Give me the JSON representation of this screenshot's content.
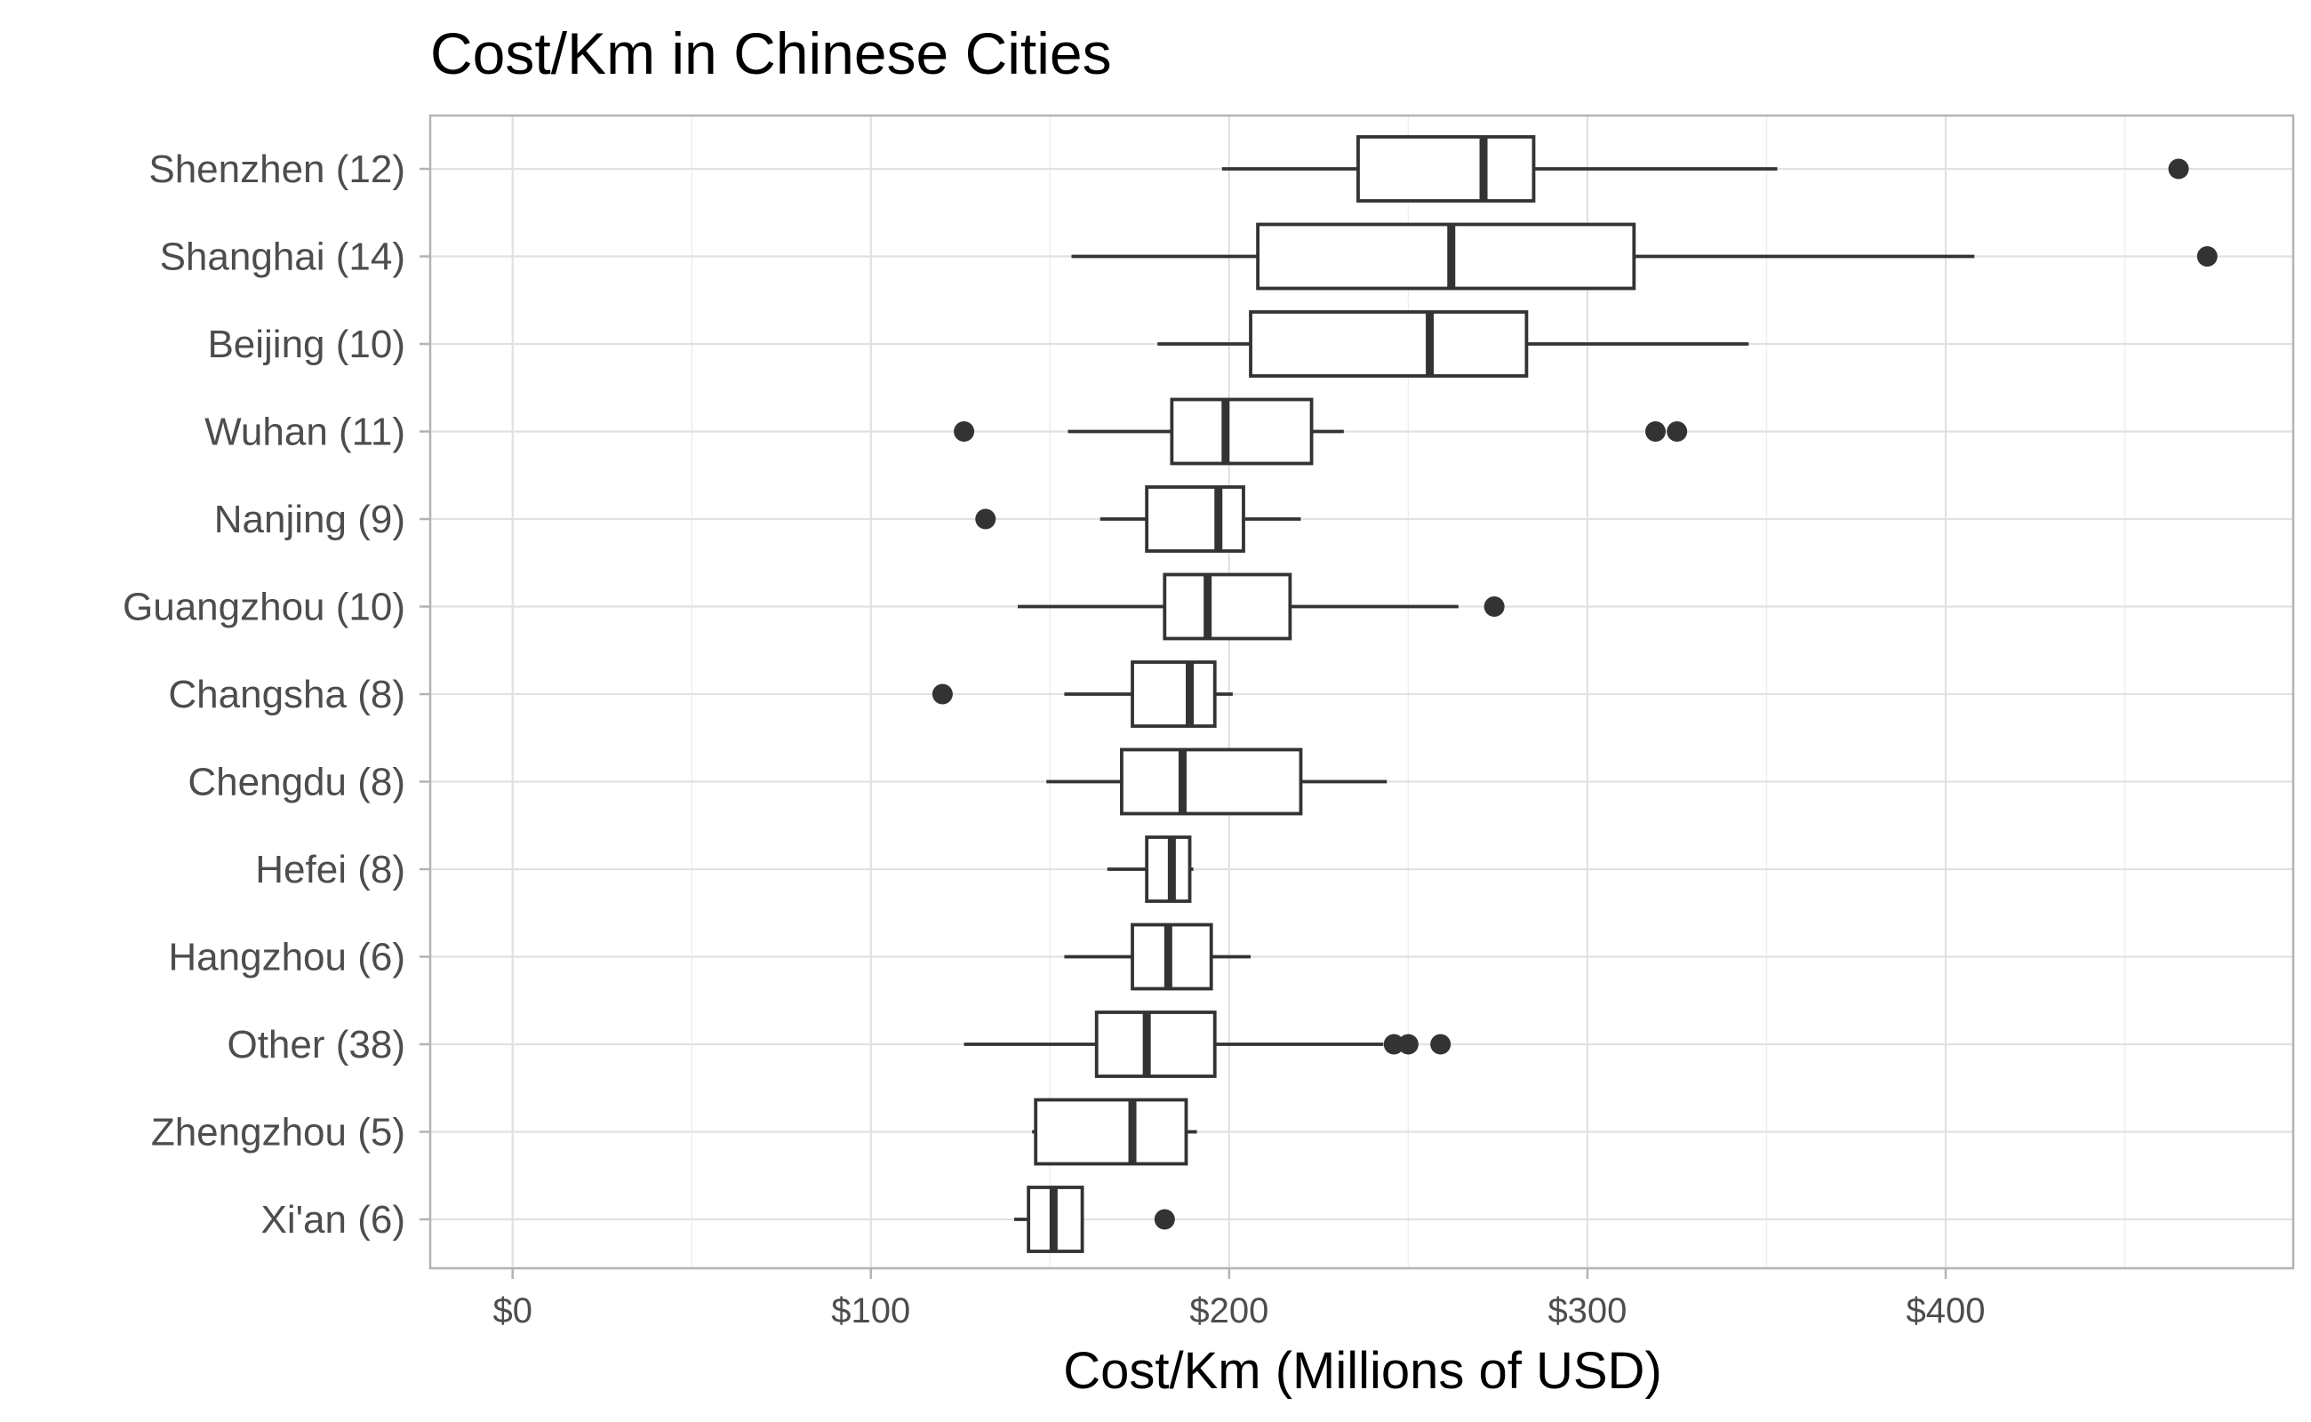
{
  "chart_data": {
    "type": "boxplot",
    "orientation": "horizontal",
    "title": "Cost/Km in Chinese Cities",
    "xlabel": "Cost/Km (Millions of USD)",
    "ylabel": "",
    "xlim": [
      -23,
      497
    ],
    "x_ticks": [
      0,
      100,
      200,
      300,
      400
    ],
    "x_tick_labels": [
      "$0",
      "$100",
      "$200",
      "$300",
      "$400"
    ],
    "grid": true,
    "colors": {
      "box_line": "#333333",
      "box_fill": "#ffffff",
      "grid": "#e1e1e1",
      "panel_border": "#b3b3b3"
    },
    "categories": [
      "Shenzhen (12)",
      "Shanghai (14)",
      "Beijing (10)",
      "Wuhan (11)",
      "Nanjing (9)",
      "Guangzhou (10)",
      "Changsha (8)",
      "Chengdu (8)",
      "Hefei (8)",
      "Hangzhou (6)",
      "Other (38)",
      "Zhengzhou (5)",
      "Xi'an (6)"
    ],
    "boxes": [
      {
        "label": "Shenzhen (12)",
        "whisker_low": 198,
        "q1": 236,
        "median": 271,
        "q3": 285,
        "whisker_high": 353,
        "outliers": [
          465
        ]
      },
      {
        "label": "Shanghai (14)",
        "whisker_low": 156,
        "q1": 208,
        "median": 262,
        "q3": 313,
        "whisker_high": 408,
        "outliers": [
          473
        ]
      },
      {
        "label": "Beijing (10)",
        "whisker_low": 180,
        "q1": 206,
        "median": 256,
        "q3": 283,
        "whisker_high": 345,
        "outliers": []
      },
      {
        "label": "Wuhan (11)",
        "whisker_low": 155,
        "q1": 184,
        "median": 199,
        "q3": 223,
        "whisker_high": 232,
        "outliers": [
          126,
          319,
          325
        ]
      },
      {
        "label": "Nanjing (9)",
        "whisker_low": 164,
        "q1": 177,
        "median": 197,
        "q3": 204,
        "whisker_high": 220,
        "outliers": [
          132
        ]
      },
      {
        "label": "Guangzhou (10)",
        "whisker_low": 141,
        "q1": 182,
        "median": 194,
        "q3": 217,
        "whisker_high": 264,
        "outliers": [
          274
        ]
      },
      {
        "label": "Changsha (8)",
        "whisker_low": 154,
        "q1": 173,
        "median": 189,
        "q3": 196,
        "whisker_high": 201,
        "outliers": [
          120
        ]
      },
      {
        "label": "Chengdu (8)",
        "whisker_low": 149,
        "q1": 170,
        "median": 187,
        "q3": 220,
        "whisker_high": 244,
        "outliers": []
      },
      {
        "label": "Hefei (8)",
        "whisker_low": 166,
        "q1": 177,
        "median": 184,
        "q3": 189,
        "whisker_high": 190,
        "outliers": []
      },
      {
        "label": "Hangzhou (6)",
        "whisker_low": 154,
        "q1": 173,
        "median": 183,
        "q3": 195,
        "whisker_high": 206,
        "outliers": []
      },
      {
        "label": "Other (38)",
        "whisker_low": 126,
        "q1": 163,
        "median": 177,
        "q3": 196,
        "whisker_high": 243,
        "outliers": [
          246,
          250,
          259
        ]
      },
      {
        "label": "Zhengzhou (5)",
        "whisker_low": 145,
        "q1": 146,
        "median": 173,
        "q3": 188,
        "whisker_high": 191,
        "outliers": []
      },
      {
        "label": "Xi'an (6)",
        "whisker_low": 140,
        "q1": 144,
        "median": 151,
        "q3": 159,
        "whisker_high": 159,
        "outliers": [
          182
        ]
      }
    ]
  }
}
